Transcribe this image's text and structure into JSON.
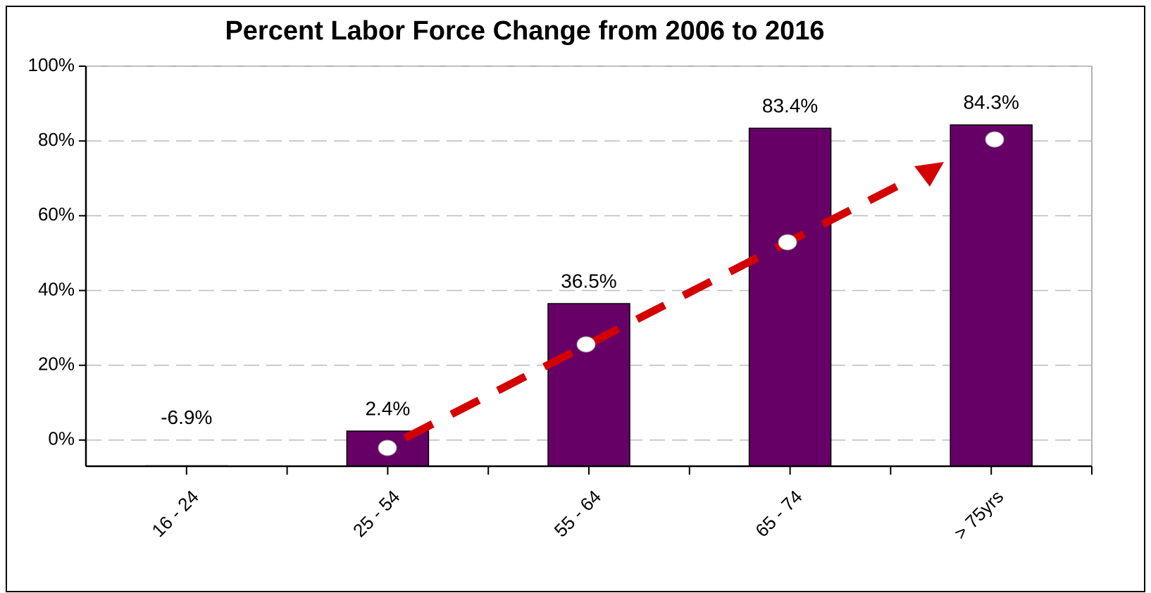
{
  "chart_data": {
    "type": "bar",
    "title": "Percent Labor Force Change from 2006 to 2016",
    "categories": [
      "16 - 24",
      "25 - 54",
      "55 - 64",
      "65 - 74",
      "> 75yrs"
    ],
    "values": [
      -6.9,
      2.4,
      36.5,
      83.4,
      84.3
    ],
    "value_labels": [
      "-6.9%",
      "2.4%",
      "36.5%",
      "83.4%",
      "84.3%"
    ],
    "color": "#660066",
    "ylim": [
      -7,
      100
    ],
    "yticks": [
      {
        "value": 0,
        "label": "0%"
      },
      {
        "value": 20,
        "label": "20%"
      },
      {
        "value": 40,
        "label": "40%"
      },
      {
        "value": 60,
        "label": "60%"
      },
      {
        "value": 80,
        "label": "80%"
      },
      {
        "value": 100,
        "label": "100%"
      }
    ],
    "grid": true
  }
}
